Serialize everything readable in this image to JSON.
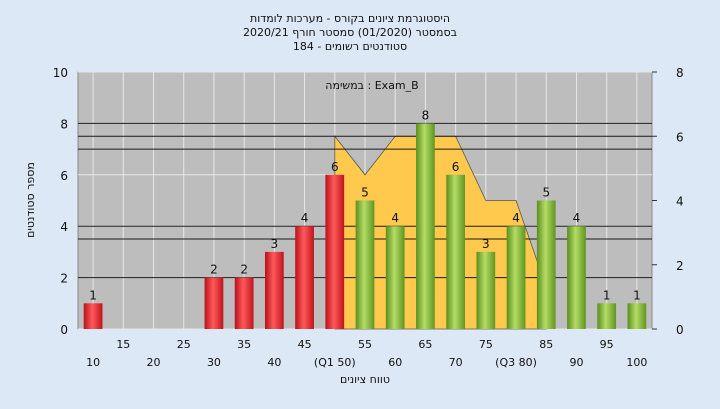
{
  "chart_data": {
    "type": "bar",
    "title_lines": [
      "היסטוגרמת ציונים בקורס - מערכות לומדות",
      "בסמסטר  (01/2020)  סמסטר חורף 2020/21",
      "סטודנטים רשומים - 184"
    ],
    "annotation": "במשימה : Exam_B",
    "xlabel": "טווח ציונים",
    "ylabel": "מספר סטודנטים",
    "ylim": [
      0,
      10
    ],
    "y_ticks": [
      0,
      2,
      4,
      6,
      8,
      10
    ],
    "y2lim": [
      0,
      8
    ],
    "y2_ticks": [
      0,
      2,
      4,
      6,
      8
    ],
    "categories": [
      "10",
      "15",
      "20",
      "25",
      "30",
      "35",
      "40",
      "45",
      "50",
      "55",
      "60",
      "65",
      "70",
      "75",
      "80",
      "85",
      "90",
      "95",
      "100"
    ],
    "tick_labels": [
      "10",
      "15",
      "20",
      "25",
      "30",
      "35",
      "40",
      "45",
      "(Q1 50)",
      "55",
      "60",
      "65",
      "70",
      "75",
      "(Q3 80)",
      "85",
      "90",
      "95",
      "100"
    ],
    "values": [
      1,
      0,
      0,
      0,
      2,
      2,
      3,
      4,
      6,
      5,
      4,
      8,
      6,
      3,
      4,
      5,
      4,
      1,
      1
    ],
    "bar_colors": [
      "red",
      "none",
      "none",
      "none",
      "red",
      "red",
      "red",
      "red",
      "red",
      "green",
      "green",
      "green",
      "green",
      "green",
      "green",
      "green",
      "green",
      "green",
      "green"
    ],
    "area_series": {
      "categories": [
        "50",
        "55",
        "60",
        "65",
        "70",
        "75",
        "80",
        "85"
      ],
      "values": [
        6,
        4.8,
        6,
        6,
        6,
        4,
        4,
        1.3
      ],
      "color": "#ffc94d"
    },
    "reference_lines": [
      8,
      7.5,
      7,
      4,
      3.5,
      2
    ],
    "grid": true,
    "colors": {
      "red": "#e8262a",
      "green": "#7cb32f",
      "plot_bg": "#bdbdbd",
      "page_bg": "#dde8f6"
    }
  }
}
